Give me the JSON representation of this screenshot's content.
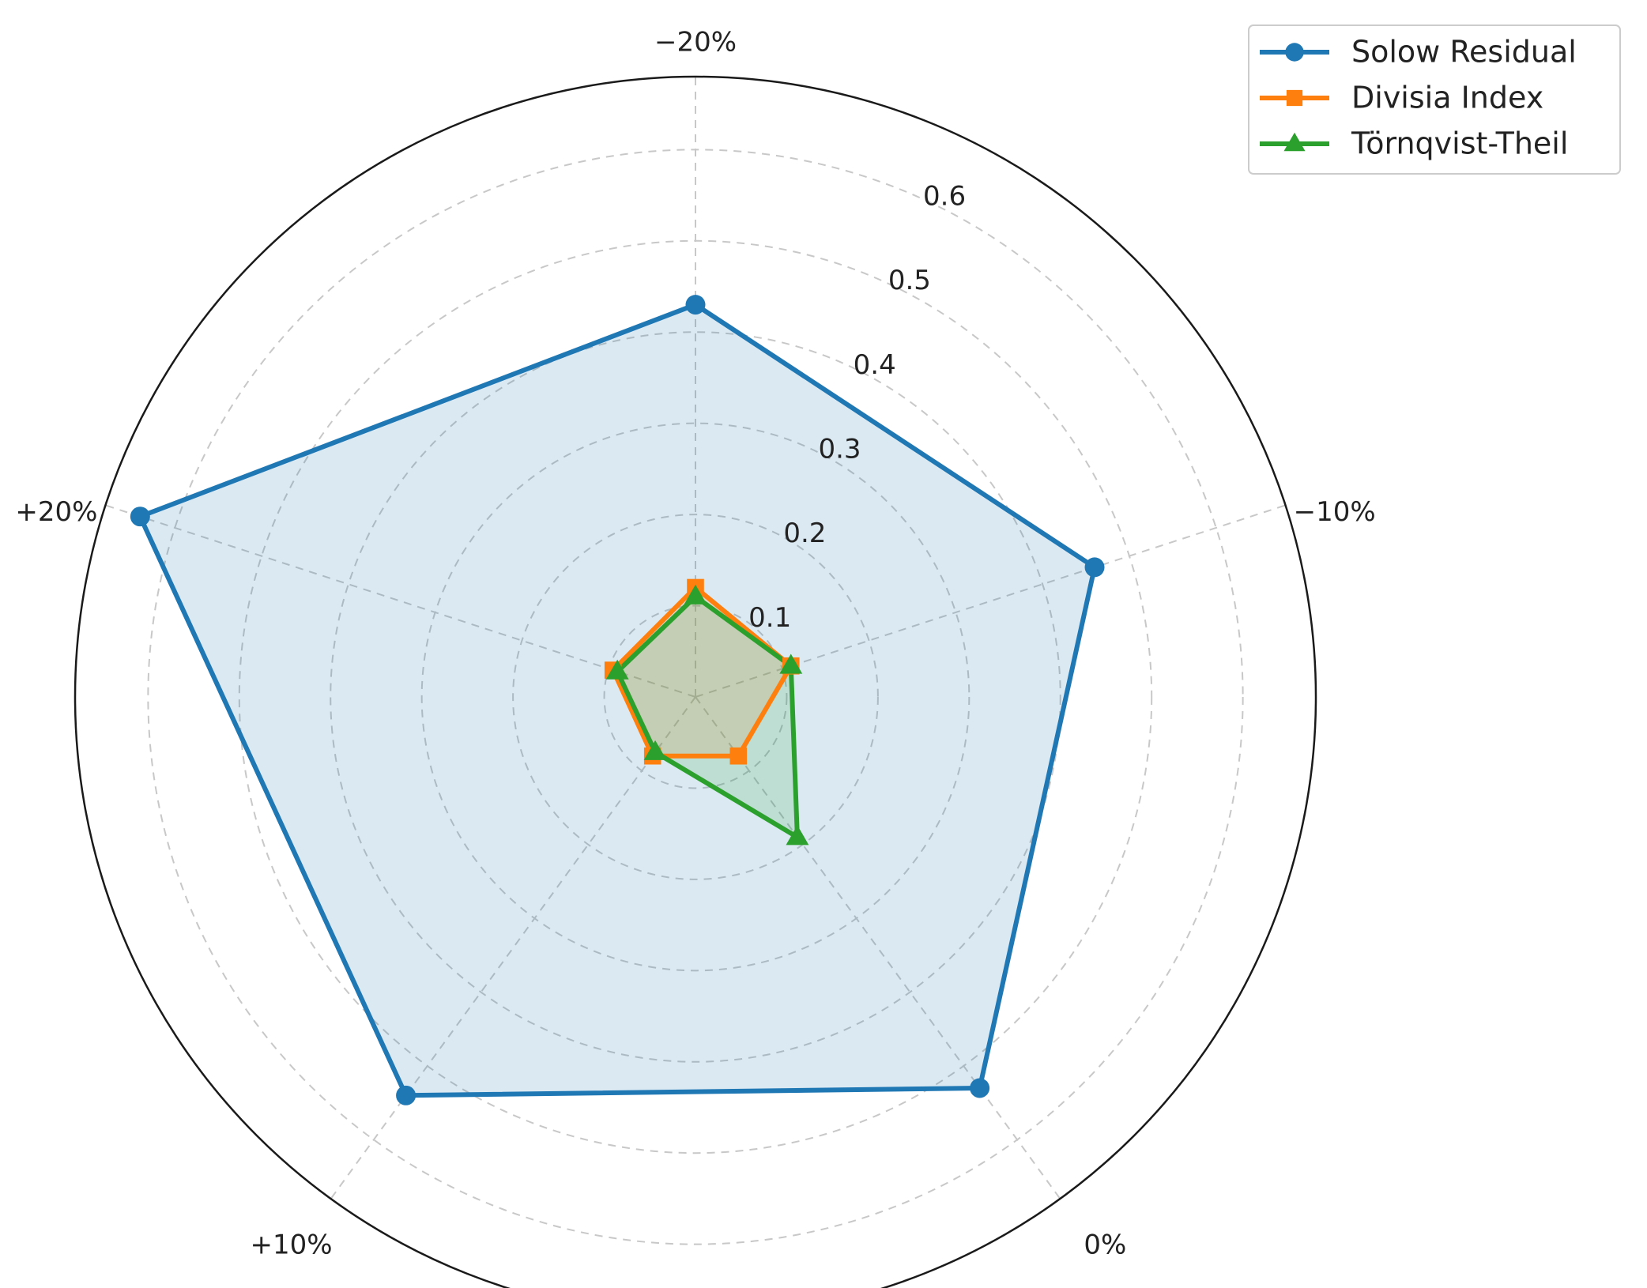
{
  "chart_data": {
    "type": "radar",
    "categories": [
      "−20%",
      "−10%",
      "0%",
      "+10%",
      "+20%"
    ],
    "r_ticks": [
      0.1,
      0.2,
      0.3,
      0.4,
      0.5,
      0.6
    ],
    "r_tick_labels": [
      "0.1",
      "0.2",
      "0.3",
      "0.4",
      "0.5",
      "0.6"
    ],
    "rlim": [
      0,
      0.68
    ],
    "grid": true,
    "legend_position": "top-right",
    "series": [
      {
        "name": "Solow Residual",
        "values": [
          0.43,
          0.46,
          0.53,
          0.54,
          0.64
        ],
        "color": "#1f77b4",
        "marker": "circle",
        "fill": true
      },
      {
        "name": "Divisia Index",
        "values": [
          0.12,
          0.11,
          0.08,
          0.08,
          0.095
        ],
        "color": "#ff7f0e",
        "marker": "square",
        "fill": true
      },
      {
        "name": "Törnqvist-Theil",
        "values": [
          0.11,
          0.11,
          0.19,
          0.075,
          0.09
        ],
        "color": "#2ca02c",
        "marker": "triangle",
        "fill": true
      }
    ]
  }
}
